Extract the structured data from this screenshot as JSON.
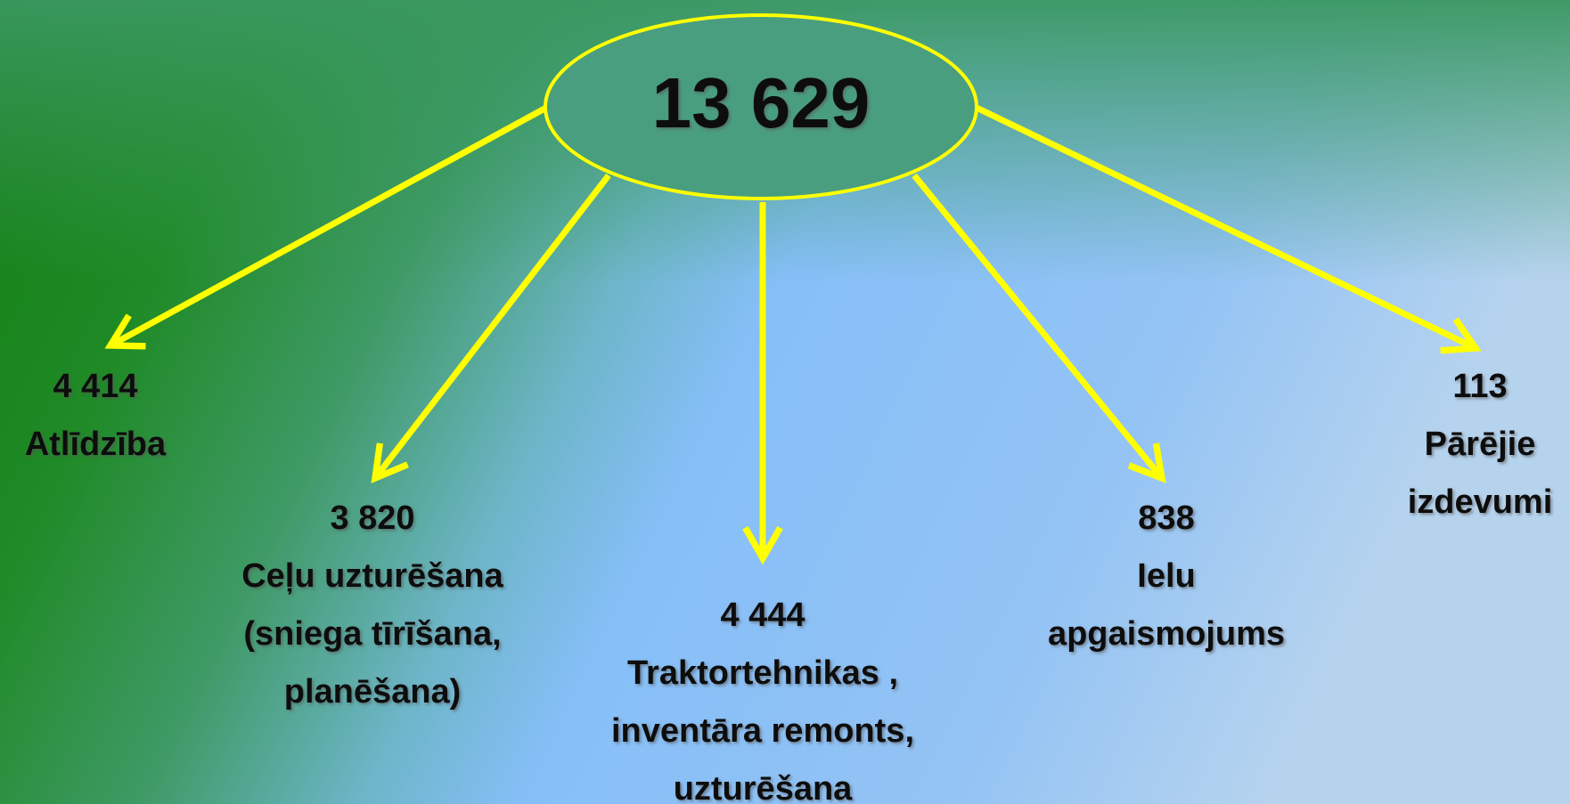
{
  "root": {
    "value": "13 629"
  },
  "nodes": [
    {
      "value": "4 414",
      "label": [
        "Atlīdzība"
      ]
    },
    {
      "value": "3 820",
      "label": [
        "Ceļu uzturēšana",
        "(sniega tīrīšana,",
        "planēšana)"
      ]
    },
    {
      "value": "4 444",
      "label": [
        "Traktortehnikas ,",
        "inventāra remonts,",
        "uzturēšana"
      ]
    },
    {
      "value": "838",
      "label": [
        "Ielu",
        "apgaismojums"
      ]
    },
    {
      "value": "113",
      "label": [
        "Pārējie",
        "izdevumi"
      ]
    }
  ]
}
